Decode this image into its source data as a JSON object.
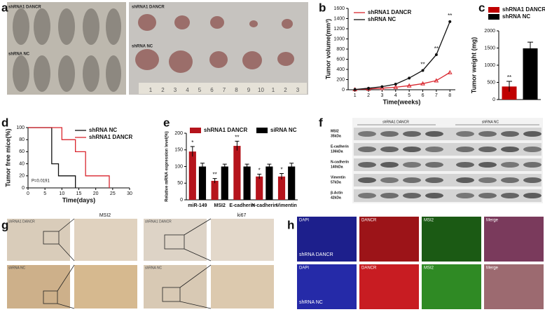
{
  "figure": {
    "panel_labels": [
      "a",
      "b",
      "c",
      "d",
      "e",
      "f",
      "g",
      "h"
    ],
    "a": {
      "labels": [
        "shRNA1 DANCR",
        "shRNA NC",
        "shRNA1 DANCR",
        "shRNA NC"
      ],
      "ruler": [
        1,
        2,
        3,
        4,
        5,
        6,
        7,
        8,
        9,
        10,
        1,
        2,
        3
      ]
    },
    "f": {
      "groups": [
        "shRNA1 DANCR",
        "shRNA NC"
      ],
      "rows": [
        {
          "name": "MSI2",
          "size": "35kDa"
        },
        {
          "name": "E-cadherin",
          "size": "136kDa"
        },
        {
          "name": "N-cadherin",
          "size": "140kDa"
        },
        {
          "name": "Vimentin",
          "size": "57kDa"
        },
        {
          "name": "β-Actin",
          "size": "42kDa"
        }
      ]
    },
    "g": {
      "stains": [
        "MSI2",
        "ki67"
      ],
      "sample_labels": [
        "shRNA1 DANCR",
        "shRNA NC",
        "shRNA1 DANCR",
        "shRNA NC"
      ]
    },
    "h": {
      "channels": [
        "DAPI",
        "DANCR",
        "MSI2",
        "Merge"
      ],
      "rows": [
        "shRNA DANCR",
        "shRNA NC"
      ]
    }
  },
  "chart_data": [
    {
      "type": "line",
      "x_label": "Time(weeks)",
      "y_label": "Tumor volume(mm³)",
      "x": [
        1,
        2,
        3,
        4,
        5,
        6,
        7,
        8
      ],
      "xlim": [
        0.5,
        8.4
      ],
      "xticks": [
        1,
        2,
        3,
        4,
        5,
        6,
        7,
        8
      ],
      "ylim": [
        0,
        1600
      ],
      "yticks": [
        0,
        200,
        400,
        600,
        800,
        1000,
        1200,
        1400,
        1600
      ],
      "markers": true,
      "legend": "upper left",
      "series": [
        {
          "name": "shRNA1 DANCR",
          "color": "#d9262e",
          "values": [
            5,
            15,
            30,
            50,
            80,
            120,
            180,
            340
          ]
        },
        {
          "name": "shRNA NC",
          "color": "#111111",
          "values": [
            5,
            30,
            60,
            110,
            230,
            380,
            690,
            1340
          ]
        }
      ],
      "annotations": [
        {
          "text": "**",
          "x": 6
        },
        {
          "text": "**",
          "x": 7
        },
        {
          "text": "**",
          "x": 8
        }
      ]
    },
    {
      "type": "bar",
      "y_label": "Tumor weight (mg)",
      "categories": [
        "shRNA1 DANCR",
        "shRNA NC"
      ],
      "values": [
        380,
        1490
      ],
      "errors": [
        150,
        180
      ],
      "colors": [
        "#c00000",
        "#000000"
      ],
      "ylim": [
        0,
        2000
      ],
      "yticks": [
        0,
        500,
        1000,
        1500,
        2000
      ],
      "legend": "top",
      "annotations": [
        {
          "text": "**",
          "category": "shRNA1 DANCR"
        }
      ]
    },
    {
      "type": "line",
      "x_label": "Time(days)",
      "y_label": "Tumor free mice(%)",
      "xlim": [
        0,
        30
      ],
      "xticks": [
        0,
        5,
        10,
        15,
        20,
        25,
        30
      ],
      "ylim": [
        0,
        100
      ],
      "yticks": [
        0,
        20,
        40,
        60,
        80,
        100
      ],
      "markers": false,
      "legend": "upper right",
      "series": [
        {
          "name": "shRNA NC",
          "color": "#111111",
          "x": [
            0,
            7,
            7,
            9,
            9,
            14,
            14
          ],
          "values": [
            100,
            100,
            40,
            40,
            20,
            20,
            0
          ]
        },
        {
          "name": "shRNA1 DANCR",
          "color": "#d9262e",
          "x": [
            0,
            10,
            10,
            14,
            14,
            17,
            17,
            24,
            24
          ],
          "values": [
            100,
            100,
            80,
            80,
            60,
            60,
            20,
            20,
            0
          ]
        }
      ],
      "annotations": [
        {
          "text": "P=0.0191"
        }
      ]
    },
    {
      "type": "bar",
      "y_label": "Relative mRNA expression level(%)",
      "categories": [
        "miR-149",
        "MSI2",
        "E-cadherin",
        "N-cadherin",
        "Vimentin"
      ],
      "ylim": [
        0,
        200
      ],
      "yticks": [
        0,
        50,
        100,
        150,
        200
      ],
      "legend": "upper center",
      "series": [
        {
          "name": "shRNA1 DANCR",
          "color": "#b5141c",
          "values": [
            145,
            57,
            162,
            70,
            70
          ],
          "errors": [
            15,
            7,
            14,
            7,
            9
          ]
        },
        {
          "name": "siRNA NC",
          "color": "#000000",
          "values": [
            100,
            100,
            100,
            100,
            100
          ],
          "errors": [
            10,
            7,
            7,
            7,
            10
          ]
        }
      ],
      "annotations": [
        {
          "text": "*",
          "category": "miR-149"
        },
        {
          "text": "**",
          "category": "MSI2"
        },
        {
          "text": "**",
          "category": "E-cadherin"
        },
        {
          "text": "*",
          "category": "N-cadherin"
        },
        {
          "text": "*",
          "category": "Vimentin"
        }
      ]
    }
  ]
}
